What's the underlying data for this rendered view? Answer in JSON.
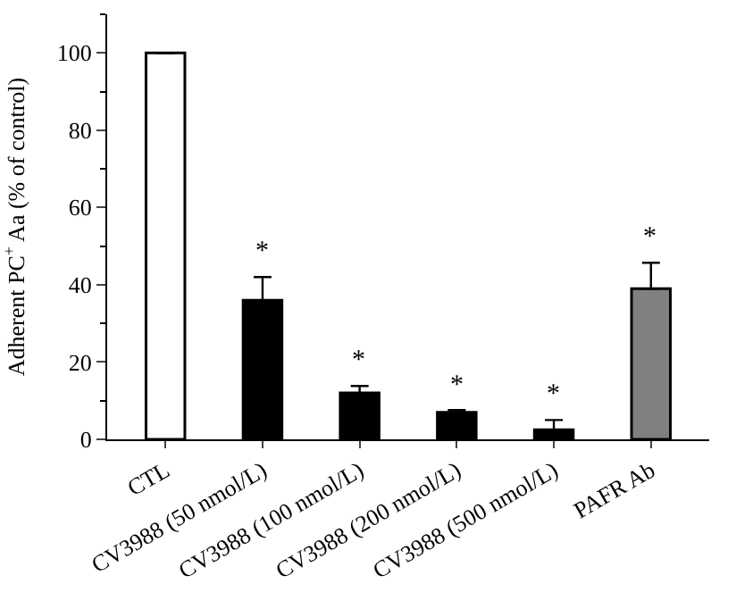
{
  "chart_data": {
    "type": "bar",
    "ylabel": "Adherent PC$^{+}$ Aa (% of control)",
    "categories": [
      "CTL",
      "CV3988 (50 nmol/L)",
      "CV3988 (100 nmol/L)",
      "CV3988 (200 nmol/L)",
      "CV3988 (500 nmol/L)",
      "PAFR Ab"
    ],
    "values": [
      100,
      36,
      12,
      7,
      2.5,
      39
    ],
    "colors": [
      "#ffffff",
      "#000000",
      "#000000",
      "#000000",
      "#000000",
      "#808080"
    ],
    "errors": [
      null,
      [
        36,
        42
      ],
      [
        12,
        13.8
      ],
      [
        7,
        7.6
      ],
      [
        2.5,
        5
      ],
      [
        39,
        45.7
      ]
    ],
    "value_labels": [
      null,
      "*",
      "*",
      "*",
      "*",
      "*"
    ],
    "ylim": [
      0,
      110
    ],
    "yticks": [
      0,
      20,
      40,
      60,
      80,
      100
    ]
  }
}
